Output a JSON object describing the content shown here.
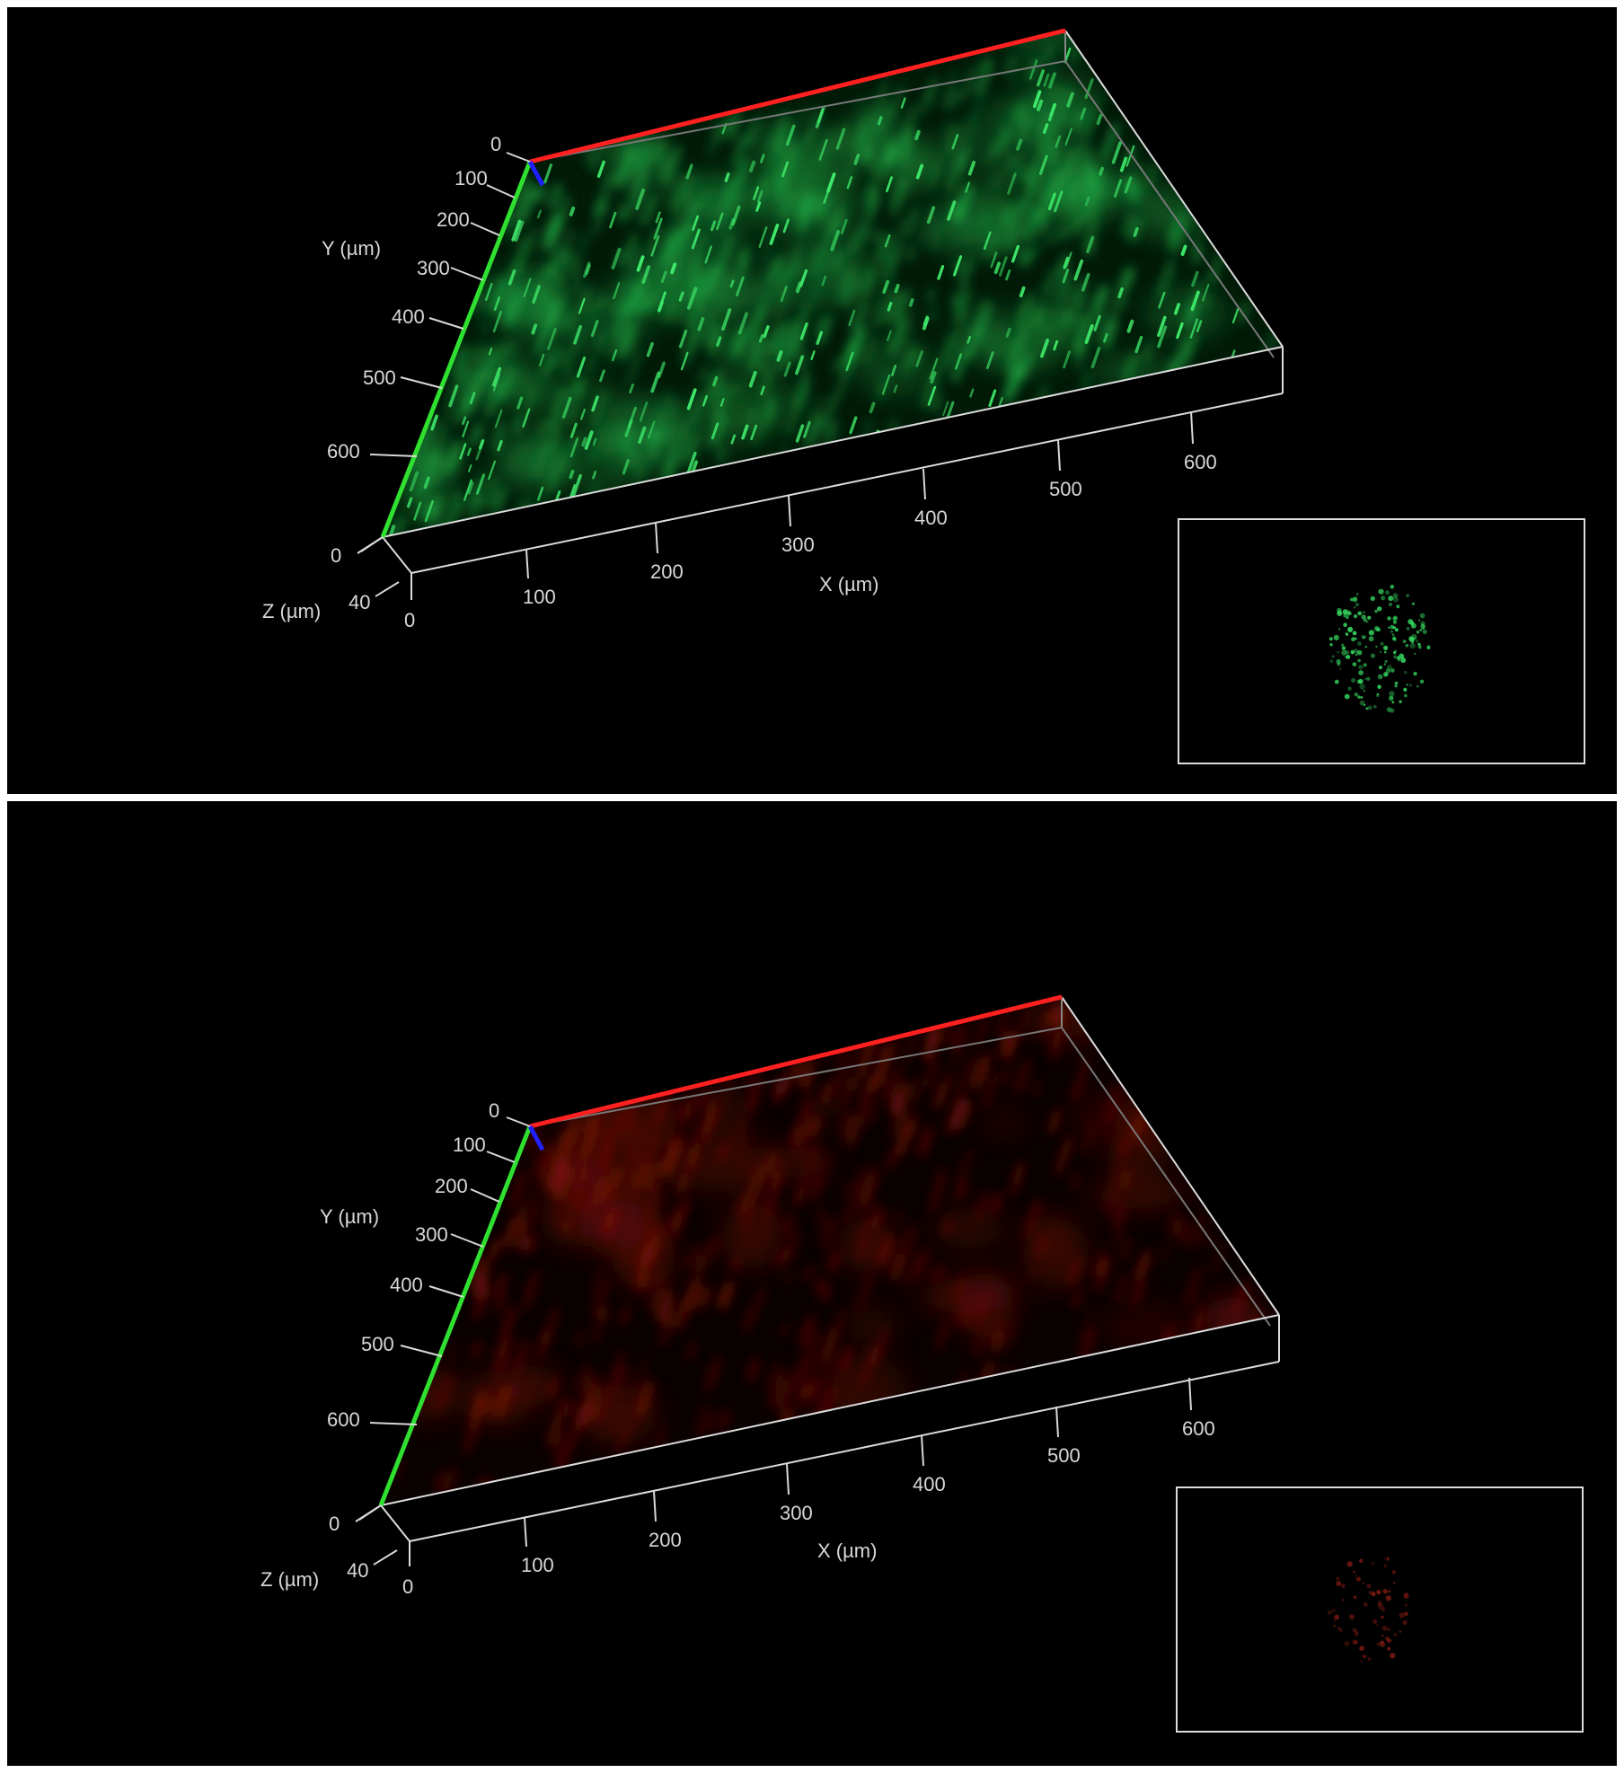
{
  "panels": [
    {
      "id": "green",
      "channel_color": "#2fd25a",
      "axes": {
        "x_title": "X (µm)",
        "y_title": "Y (µm)",
        "z_title": "Z (µm)",
        "x_ticks": [
          "100",
          "200",
          "300",
          "400",
          "500",
          "600"
        ],
        "y_ticks": [
          "0",
          "100",
          "200",
          "300",
          "400",
          "500",
          "600"
        ],
        "z_ticks": [
          "0",
          "40",
          "0"
        ]
      },
      "axis_colors": {
        "x": "#ff2020",
        "y": "#30e030",
        "z": "#2020ff",
        "box": "#dcdcdc"
      }
    },
    {
      "id": "red",
      "channel_color": "#b01810",
      "axes": {
        "x_title": "X (µm)",
        "y_title": "Y (µm)",
        "z_title": "Z (µm)",
        "x_ticks": [
          "100",
          "200",
          "300",
          "400",
          "500",
          "600"
        ],
        "y_ticks": [
          "0",
          "100",
          "200",
          "300",
          "400",
          "500",
          "600"
        ],
        "z_ticks": [
          "0",
          "40",
          "0"
        ]
      },
      "axis_colors": {
        "x": "#ff2020",
        "y": "#30e030",
        "z": "#2020ff",
        "box": "#dcdcdc"
      }
    }
  ]
}
